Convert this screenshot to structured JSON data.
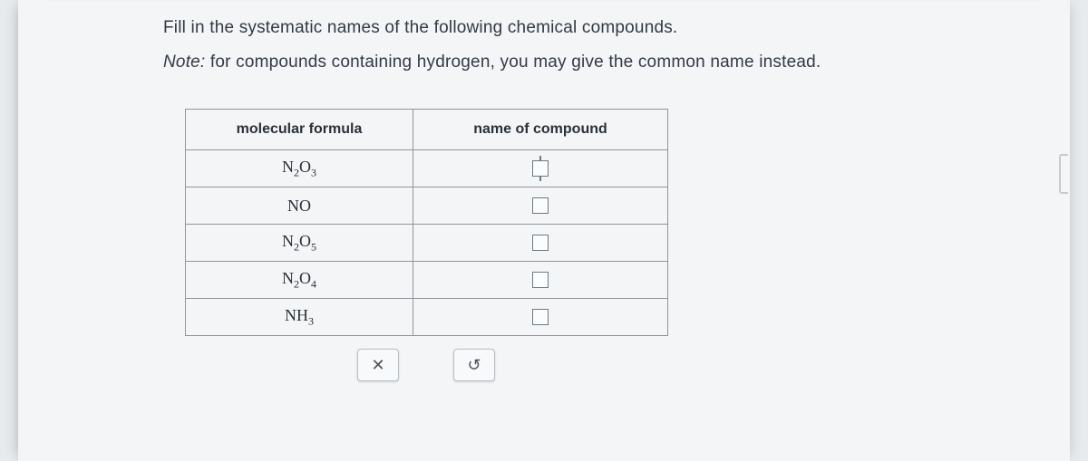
{
  "instruction": "Fill in the systematic names of the following chemical compounds.",
  "note_label": "Note:",
  "note_text": " for compounds containing hydrogen, you may give the common name instead.",
  "table": {
    "header_formula": "molecular formula",
    "header_name": "name of compound",
    "col_formula_width": 250,
    "col_name_width": 280,
    "border_color": "#8f969c",
    "rows": [
      {
        "formula_html": "N<sub>2</sub>O<sub>3</sub>",
        "active": true
      },
      {
        "formula_html": "NO",
        "active": false
      },
      {
        "formula_html": "N<sub>2</sub>O<sub>5</sub>",
        "active": false
      },
      {
        "formula_html": "N<sub>2</sub>O<sub>4</sub>",
        "active": false
      },
      {
        "formula_html": "NH<sub>3</sub>",
        "active": false
      }
    ]
  },
  "controls": {
    "clear_glyph": "✕",
    "reset_glyph": "↺"
  },
  "colors": {
    "page_bg": "#f3f5f7",
    "outer_bg": "#e8ebee",
    "text": "#333a44",
    "input_border": "#6e7a83",
    "button_border": "#b9c0c6"
  }
}
